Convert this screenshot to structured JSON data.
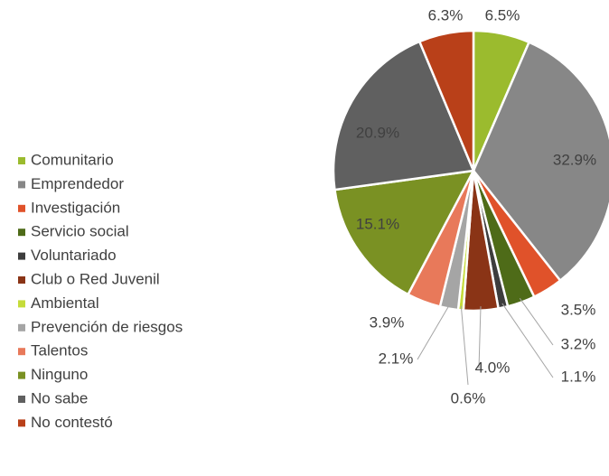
{
  "chart_data": {
    "type": "pie",
    "categories": [
      "Comunitario",
      "Emprendedor",
      "Investigación",
      "Servicio social",
      "Voluntariado",
      "Club o Red Juvenil",
      "Ambiental",
      "Prevención de riesgos",
      "Talentos",
      "Ninguno",
      "No sabe",
      "No contestó"
    ],
    "values": [
      6.5,
      32.9,
      3.5,
      3.2,
      1.1,
      4.0,
      0.6,
      2.1,
      3.9,
      15.1,
      20.9,
      6.3
    ],
    "value_labels": [
      "6.5%",
      "32.9%",
      "3.5%",
      "3.2%",
      "1.1%",
      "4.0%",
      "0.6%",
      "2.1%",
      "3.9%",
      "15.1%",
      "20.9%",
      "6.3%"
    ],
    "colors": [
      "#9bbb2e",
      "#878787",
      "#e0522a",
      "#4e6b18",
      "#3d3d3d",
      "#8a3416",
      "#c5dc3a",
      "#a5a5a5",
      "#e8795a",
      "#7a9123",
      "#606060",
      "#b94019"
    ],
    "legend": "left"
  }
}
